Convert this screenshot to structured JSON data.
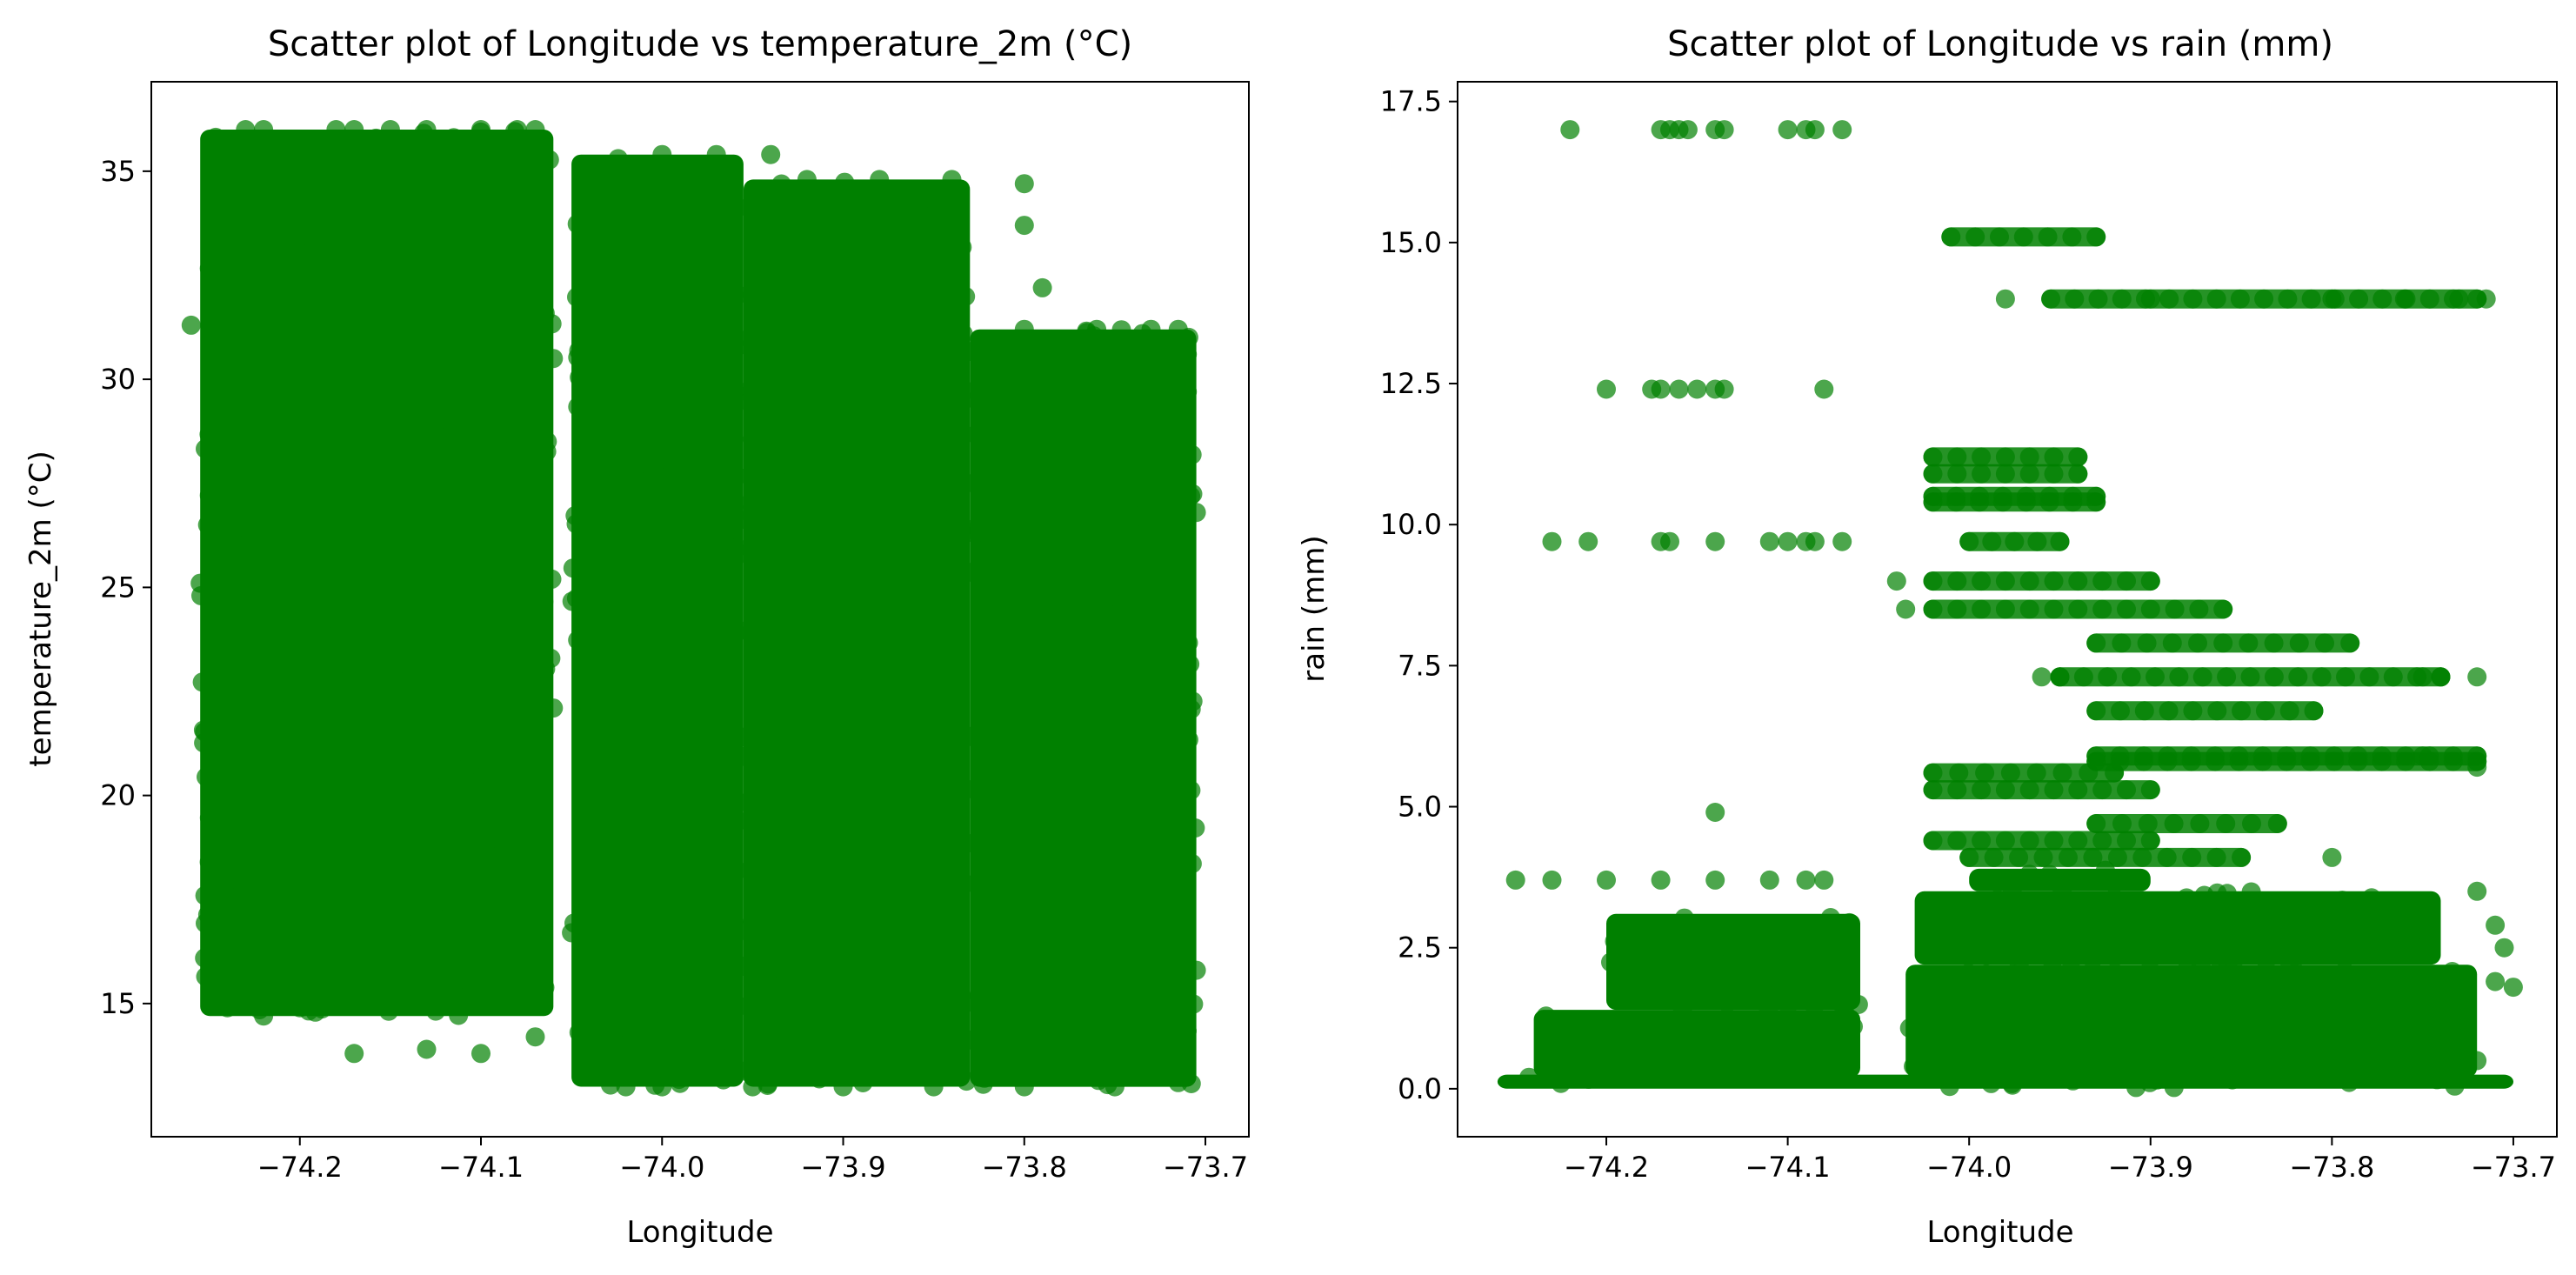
{
  "figure": {
    "background": "#ffffff",
    "marker_color": "#008000",
    "marker_opacity": 0.7
  },
  "chart_data": [
    {
      "type": "scatter",
      "title": "Scatter plot of Longitude vs temperature_2m (°C)",
      "xlabel": "Longitude",
      "ylabel": "temperature_2m (°C)",
      "xlim": [
        -74.282,
        -73.676
      ],
      "ylim": [
        11.8,
        37.15
      ],
      "xticks": [
        -74.2,
        -74.1,
        -74.0,
        -73.9,
        -73.8,
        -73.7
      ],
      "xtick_labels": [
        "−74.2",
        "−74.1",
        "−74.0",
        "−73.9",
        "−73.8",
        "−73.7"
      ],
      "yticks": [
        15,
        20,
        25,
        30,
        35
      ],
      "ytick_labels": [
        "15",
        "20",
        "25",
        "30",
        "35"
      ],
      "grid": false,
      "legend": "none",
      "color": "#008000",
      "series": [
        {
          "values_description": "dense point clusters",
          "regions": [
            {
              "x": [
                -74.255,
                -74.06
              ],
              "y": [
                14.7,
                36.0
              ]
            },
            {
              "x": [
                -74.05,
                -73.955
              ],
              "y": [
                13.0,
                35.4
              ]
            },
            {
              "x": [
                -73.955,
                -73.83
              ],
              "y": [
                13.0,
                34.8
              ]
            },
            {
              "x": [
                -73.83,
                -73.705
              ],
              "y": [
                13.0,
                31.2
              ]
            }
          ],
          "points": [
            [
              -74.23,
              36.0
            ],
            [
              -74.22,
              36.0
            ],
            [
              -74.18,
              36.0
            ],
            [
              -74.17,
              36.0
            ],
            [
              -74.15,
              36.0
            ],
            [
              -74.13,
              36.0
            ],
            [
              -74.1,
              36.0
            ],
            [
              -74.08,
              36.0
            ],
            [
              -74.07,
              36.0
            ],
            [
              -74.24,
              35.3
            ],
            [
              -74.2,
              35.3
            ],
            [
              -74.16,
              35.3
            ],
            [
              -74.12,
              35.3
            ],
            [
              -74.09,
              35.3
            ],
            [
              -74.26,
              31.3
            ],
            [
              -74.255,
              25.1
            ],
            [
              -74.25,
              18.4
            ],
            [
              -74.24,
              14.9
            ],
            [
              -74.22,
              14.7
            ],
            [
              -74.2,
              14.9
            ],
            [
              -74.17,
              13.8
            ],
            [
              -74.13,
              13.9
            ],
            [
              -74.1,
              13.8
            ],
            [
              -74.07,
              14.2
            ],
            [
              -74.06,
              30.5
            ],
            [
              -74.06,
              22.1
            ],
            [
              -74.05,
              16.7
            ],
            [
              -74.04,
              33.7
            ],
            [
              -74.03,
              13.3
            ],
            [
              -74.0,
              35.4
            ],
            [
              -73.97,
              35.4
            ],
            [
              -73.94,
              35.4
            ],
            [
              -73.92,
              34.8
            ],
            [
              -73.88,
              34.8
            ],
            [
              -73.84,
              34.8
            ],
            [
              -73.8,
              34.7
            ],
            [
              -73.8,
              33.7
            ],
            [
              -73.79,
              32.2
            ],
            [
              -73.8,
              31.2
            ],
            [
              -73.76,
              31.2
            ],
            [
              -73.73,
              31.2
            ],
            [
              -73.715,
              31.2
            ],
            [
              -73.71,
              30.6
            ],
            [
              -73.71,
              29.7
            ],
            [
              -73.705,
              26.8
            ],
            [
              -73.71,
              22.0
            ],
            [
              -73.705,
              15.8
            ],
            [
              -73.715,
              13.1
            ],
            [
              -73.75,
              13.0
            ],
            [
              -73.8,
              13.0
            ],
            [
              -73.85,
              13.0
            ],
            [
              -73.9,
              13.0
            ],
            [
              -73.95,
              13.0
            ],
            [
              -74.0,
              13.0
            ],
            [
              -74.02,
              13.0
            ]
          ]
        }
      ]
    },
    {
      "type": "scatter",
      "title": "Scatter plot of Longitude vs rain (mm)",
      "xlabel": "Longitude",
      "ylabel": "rain (mm)",
      "xlim": [
        -74.282,
        -73.676
      ],
      "ylim": [
        -0.85,
        17.85
      ],
      "xticks": [
        -74.2,
        -74.1,
        -74.0,
        -73.9,
        -73.8,
        -73.7
      ],
      "xtick_labels": [
        "−74.2",
        "−74.1",
        "−74.0",
        "−73.9",
        "−73.8",
        "−73.7"
      ],
      "yticks": [
        0.0,
        2.5,
        5.0,
        7.5,
        10.0,
        12.5,
        15.0,
        17.5
      ],
      "ytick_labels": [
        "0.0",
        "2.5",
        "5.0",
        "7.5",
        "10.0",
        "12.5",
        "15.0",
        "17.5"
      ],
      "grid": false,
      "legend": "none",
      "color": "#008000",
      "series": [
        {
          "values_description": "dense point clusters and horizontal bands",
          "regions": [
            {
              "x": [
                -74.26,
                -73.7
              ],
              "y": [
                0.0,
                0.25
              ]
            },
            {
              "x": [
                -74.24,
                -74.06
              ],
              "y": [
                0.2,
                1.4
              ]
            },
            {
              "x": [
                -74.2,
                -74.06
              ],
              "y": [
                1.4,
                3.1
              ]
            },
            {
              "x": [
                -74.035,
                -73.72
              ],
              "y": [
                0.2,
                2.2
              ]
            },
            {
              "x": [
                -74.03,
                -73.74
              ],
              "y": [
                2.2,
                3.5
              ]
            },
            {
              "x": [
                -74.0,
                -73.9
              ],
              "y": [
                3.5,
                3.9
              ]
            }
          ],
          "bands": [
            {
              "x": [
                -74.01,
                -73.93
              ],
              "y": 15.1
            },
            {
              "x": [
                -73.955,
                -73.72
              ],
              "y": 14.0
            },
            {
              "x": [
                -74.02,
                -73.94
              ],
              "y": 11.2
            },
            {
              "x": [
                -74.02,
                -73.94
              ],
              "y": 10.9
            },
            {
              "x": [
                -74.02,
                -73.93
              ],
              "y": 10.5
            },
            {
              "x": [
                -74.02,
                -73.93
              ],
              "y": 10.4
            },
            {
              "x": [
                -74.0,
                -73.95
              ],
              "y": 9.7
            },
            {
              "x": [
                -74.02,
                -73.9
              ],
              "y": 9.0
            },
            {
              "x": [
                -74.02,
                -73.86
              ],
              "y": 8.5
            },
            {
              "x": [
                -73.93,
                -73.79
              ],
              "y": 7.9
            },
            {
              "x": [
                -73.95,
                -73.74
              ],
              "y": 7.3
            },
            {
              "x": [
                -73.93,
                -73.81
              ],
              "y": 6.7
            },
            {
              "x": [
                -73.93,
                -73.72
              ],
              "y": 5.9
            },
            {
              "x": [
                -73.93,
                -73.72
              ],
              "y": 5.8
            },
            {
              "x": [
                -74.02,
                -73.92
              ],
              "y": 5.6
            },
            {
              "x": [
                -74.02,
                -73.9
              ],
              "y": 5.3
            },
            {
              "x": [
                -73.93,
                -73.83
              ],
              "y": 4.7
            },
            {
              "x": [
                -74.02,
                -73.9
              ],
              "y": 4.4
            },
            {
              "x": [
                -74.0,
                -73.85
              ],
              "y": 4.1
            }
          ],
          "points": [
            [
              -74.22,
              17.0
            ],
            [
              -74.17,
              17.0
            ],
            [
              -74.165,
              17.0
            ],
            [
              -74.16,
              17.0
            ],
            [
              -74.155,
              17.0
            ],
            [
              -74.14,
              17.0
            ],
            [
              -74.135,
              17.0
            ],
            [
              -74.1,
              17.0
            ],
            [
              -74.09,
              17.0
            ],
            [
              -74.085,
              17.0
            ],
            [
              -74.07,
              17.0
            ],
            [
              -74.2,
              12.4
            ],
            [
              -74.175,
              12.4
            ],
            [
              -74.17,
              12.4
            ],
            [
              -74.16,
              12.4
            ],
            [
              -74.15,
              12.4
            ],
            [
              -74.14,
              12.4
            ],
            [
              -74.135,
              12.4
            ],
            [
              -74.08,
              12.4
            ],
            [
              -74.23,
              9.7
            ],
            [
              -74.21,
              9.7
            ],
            [
              -74.17,
              9.7
            ],
            [
              -74.165,
              9.7
            ],
            [
              -74.14,
              9.7
            ],
            [
              -74.11,
              9.7
            ],
            [
              -74.1,
              9.7
            ],
            [
              -74.09,
              9.7
            ],
            [
              -74.085,
              9.7
            ],
            [
              -74.07,
              9.7
            ],
            [
              -74.14,
              4.9
            ],
            [
              -74.25,
              3.7
            ],
            [
              -74.23,
              3.7
            ],
            [
              -74.2,
              3.7
            ],
            [
              -74.17,
              3.7
            ],
            [
              -74.14,
              3.7
            ],
            [
              -74.11,
              3.7
            ],
            [
              -74.09,
              3.7
            ],
            [
              -74.08,
              3.7
            ],
            [
              -73.98,
              14.0
            ],
            [
              -73.9,
              14.0
            ],
            [
              -73.8,
              14.0
            ],
            [
              -73.76,
              14.0
            ],
            [
              -73.73,
              14.0
            ],
            [
              -73.715,
              14.0
            ],
            [
              -74.04,
              9.0
            ],
            [
              -74.035,
              8.5
            ],
            [
              -73.96,
              7.3
            ],
            [
              -73.95,
              7.3
            ],
            [
              -73.75,
              7.3
            ],
            [
              -73.74,
              7.3
            ],
            [
              -73.72,
              7.3
            ],
            [
              -73.75,
              5.9
            ],
            [
              -73.72,
              5.7
            ],
            [
              -73.8,
              4.1
            ],
            [
              -73.72,
              3.5
            ],
            [
              -73.71,
              2.9
            ],
            [
              -73.705,
              2.5
            ],
            [
              -73.71,
              1.9
            ],
            [
              -73.7,
              1.8
            ]
          ]
        }
      ]
    }
  ]
}
